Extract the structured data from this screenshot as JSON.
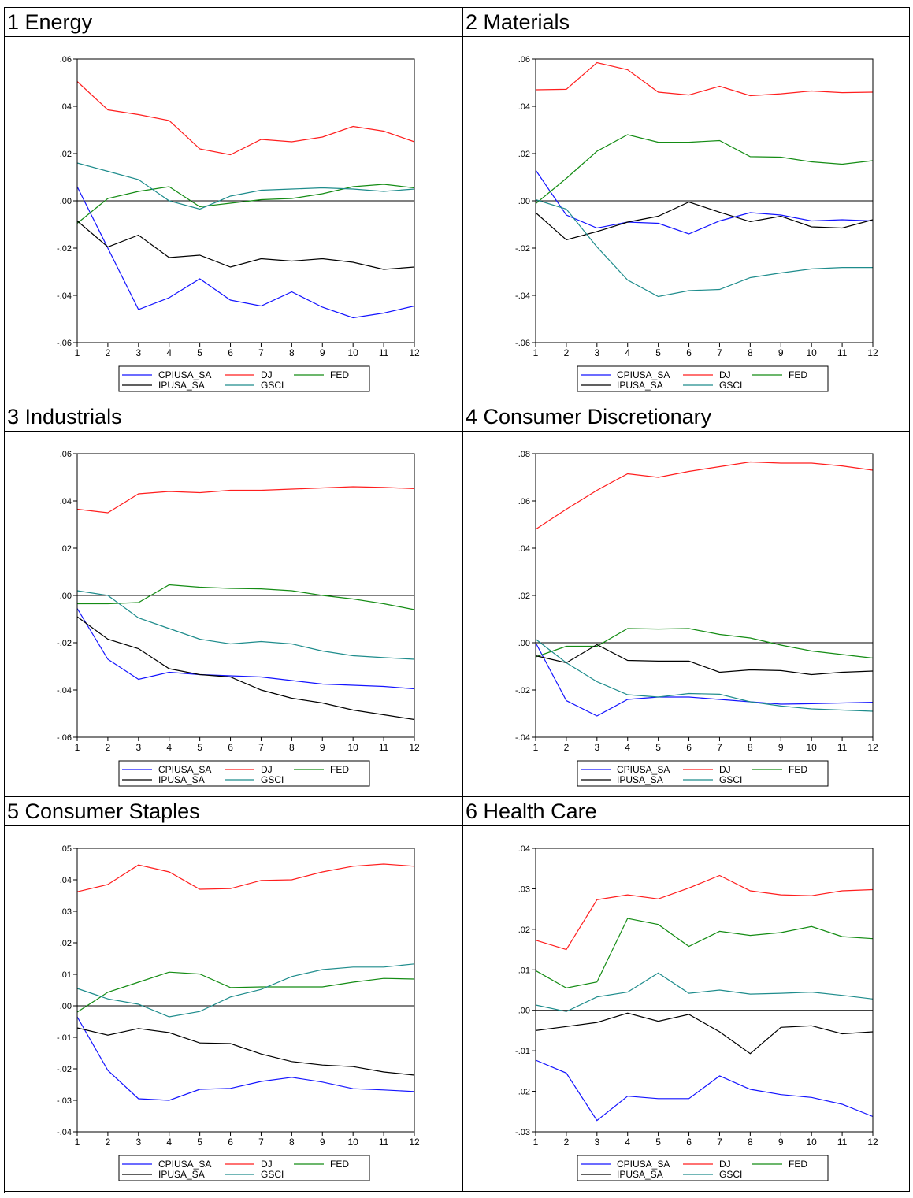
{
  "legend_order": [
    "CPIUSA_SA",
    "DJ",
    "FED",
    "IPUSA_SA",
    "GSCI"
  ],
  "series_colors": {
    "CPIUSA_SA": "#1414ff",
    "DJ": "#ff1e1e",
    "FED": "#148c14",
    "IPUSA_SA": "#000000",
    "GSCI": "#1e8c8c"
  },
  "panels": [
    {
      "title": "1 Energy"
    },
    {
      "title": "2 Materials"
    },
    {
      "title": "3 Industrials"
    },
    {
      "title": "4 Consumer Discretionary"
    },
    {
      "title": "5 Consumer Staples"
    },
    {
      "title": "6 Health Care"
    }
  ],
  "chart_data": [
    {
      "type": "line",
      "title": "1 Energy",
      "x": [
        1,
        2,
        3,
        4,
        5,
        6,
        7,
        8,
        9,
        10,
        11,
        12
      ],
      "ylim": [
        -0.06,
        0.06
      ],
      "yticks": [
        ".06",
        ".04",
        ".02",
        ".00",
        "-.02",
        "-.04",
        "-.06"
      ],
      "series": [
        {
          "name": "CPIUSA_SA",
          "values": [
            0.006,
            -0.02,
            -0.046,
            -0.041,
            -0.033,
            -0.042,
            -0.0445,
            -0.0385,
            -0.045,
            -0.0495,
            -0.0475,
            -0.0445
          ]
        },
        {
          "name": "DJ",
          "values": [
            0.0505,
            0.0385,
            0.0365,
            0.034,
            0.022,
            0.0195,
            0.026,
            0.025,
            0.027,
            0.0315,
            0.0295,
            0.025
          ]
        },
        {
          "name": "FED",
          "values": [
            -0.0095,
            0.001,
            0.004,
            0.006,
            -0.0025,
            -0.001,
            0.0005,
            0.001,
            0.003,
            0.006,
            0.007,
            0.0055
          ]
        },
        {
          "name": "IPUSA_SA",
          "values": [
            -0.0085,
            -0.0195,
            -0.0145,
            -0.024,
            -0.023,
            -0.028,
            -0.0245,
            -0.0255,
            -0.0245,
            -0.026,
            -0.029,
            -0.028
          ]
        },
        {
          "name": "GSCI",
          "values": [
            0.016,
            0.0125,
            0.009,
            0.0,
            -0.0035,
            0.002,
            0.0045,
            0.005,
            0.0055,
            0.005,
            0.004,
            0.005
          ]
        }
      ]
    },
    {
      "type": "line",
      "title": "2 Materials",
      "x": [
        1,
        2,
        3,
        4,
        5,
        6,
        7,
        8,
        9,
        10,
        11,
        12
      ],
      "ylim": [
        -0.06,
        0.06
      ],
      "yticks": [
        ".06",
        ".04",
        ".02",
        ".00",
        "-.02",
        "-.04",
        "-.06"
      ],
      "series": [
        {
          "name": "CPIUSA_SA",
          "values": [
            0.013,
            -0.006,
            -0.0115,
            -0.009,
            -0.0095,
            -0.014,
            -0.0085,
            -0.005,
            -0.006,
            -0.0085,
            -0.008,
            -0.0085
          ]
        },
        {
          "name": "DJ",
          "values": [
            0.047,
            0.0472,
            0.0585,
            0.0555,
            0.046,
            0.0448,
            0.0485,
            0.0445,
            0.0453,
            0.0465,
            0.0458,
            0.046
          ]
        },
        {
          "name": "FED",
          "values": [
            -0.0012,
            0.0095,
            0.021,
            0.028,
            0.0248,
            0.0248,
            0.0255,
            0.0187,
            0.0185,
            0.0165,
            0.0155,
            0.017
          ]
        },
        {
          "name": "IPUSA_SA",
          "values": [
            -0.005,
            -0.0165,
            -0.013,
            -0.009,
            -0.0065,
            -0.0005,
            -0.0048,
            -0.0088,
            -0.0065,
            -0.011,
            -0.0115,
            -0.008
          ]
        },
        {
          "name": "GSCI",
          "values": [
            0.0005,
            -0.0035,
            -0.0195,
            -0.0335,
            -0.0405,
            -0.038,
            -0.0375,
            -0.0325,
            -0.0305,
            -0.0288,
            -0.0282,
            -0.0282
          ]
        }
      ]
    },
    {
      "type": "line",
      "title": "3 Industrials",
      "x": [
        1,
        2,
        3,
        4,
        5,
        6,
        7,
        8,
        9,
        10,
        11,
        12
      ],
      "ylim": [
        -0.06,
        0.06
      ],
      "yticks": [
        ".06",
        ".04",
        ".02",
        ".00",
        "-.02",
        "-.04",
        "-.06"
      ],
      "series": [
        {
          "name": "CPIUSA_SA",
          "values": [
            -0.0055,
            -0.027,
            -0.0355,
            -0.0325,
            -0.0335,
            -0.034,
            -0.0345,
            -0.036,
            -0.0375,
            -0.038,
            -0.0385,
            -0.0395
          ]
        },
        {
          "name": "DJ",
          "values": [
            0.0365,
            0.035,
            0.043,
            0.044,
            0.0435,
            0.0445,
            0.0445,
            0.045,
            0.0455,
            0.046,
            0.0457,
            0.0452
          ]
        },
        {
          "name": "FED",
          "values": [
            -0.0035,
            -0.0035,
            -0.003,
            0.0045,
            0.0035,
            0.003,
            0.0028,
            0.002,
            0.0,
            -0.0015,
            -0.0035,
            -0.006
          ]
        },
        {
          "name": "IPUSA_SA",
          "values": [
            -0.009,
            -0.0185,
            -0.0225,
            -0.031,
            -0.0335,
            -0.0345,
            -0.04,
            -0.0435,
            -0.0455,
            -0.0485,
            -0.0505,
            -0.0525
          ]
        },
        {
          "name": "GSCI",
          "values": [
            0.002,
            0.0,
            -0.0095,
            -0.014,
            -0.0185,
            -0.0205,
            -0.0195,
            -0.0205,
            -0.0235,
            -0.0255,
            -0.0263,
            -0.027
          ]
        }
      ]
    },
    {
      "type": "line",
      "title": "4 Consumer Discretionary",
      "x": [
        1,
        2,
        3,
        4,
        5,
        6,
        7,
        8,
        9,
        10,
        11,
        12
      ],
      "ylim": [
        -0.04,
        0.08
      ],
      "yticks": [
        ".08",
        ".06",
        ".04",
        ".02",
        ".00",
        "-.02",
        "-.04"
      ],
      "series": [
        {
          "name": "CPIUSA_SA",
          "values": [
            0.0,
            -0.0245,
            -0.031,
            -0.024,
            -0.023,
            -0.023,
            -0.024,
            -0.025,
            -0.026,
            -0.0258,
            -0.0255,
            -0.0252
          ]
        },
        {
          "name": "DJ",
          "values": [
            0.048,
            0.0565,
            0.0645,
            0.0715,
            0.07,
            0.0725,
            0.0745,
            0.0765,
            0.076,
            0.076,
            0.0748,
            0.073
          ]
        },
        {
          "name": "FED",
          "values": [
            -0.006,
            -0.0015,
            -0.0015,
            0.006,
            0.0058,
            0.006,
            0.0035,
            0.002,
            -0.001,
            -0.0035,
            -0.005,
            -0.0065
          ]
        },
        {
          "name": "IPUSA_SA",
          "values": [
            -0.0055,
            -0.0085,
            -0.0008,
            -0.0075,
            -0.0078,
            -0.0078,
            -0.0125,
            -0.0115,
            -0.0118,
            -0.0135,
            -0.0125,
            -0.012
          ]
        },
        {
          "name": "GSCI",
          "values": [
            0.0015,
            -0.0085,
            -0.0165,
            -0.022,
            -0.023,
            -0.0215,
            -0.0218,
            -0.025,
            -0.0268,
            -0.028,
            -0.0285,
            -0.029
          ]
        }
      ]
    },
    {
      "type": "line",
      "title": "5 Consumer Staples",
      "x": [
        1,
        2,
        3,
        4,
        5,
        6,
        7,
        8,
        9,
        10,
        11,
        12
      ],
      "ylim": [
        -0.04,
        0.05
      ],
      "yticks": [
        ".05",
        ".04",
        ".03",
        ".02",
        ".01",
        ".00",
        "-.01",
        "-.02",
        "-.03",
        "-.04"
      ],
      "series": [
        {
          "name": "CPIUSA_SA",
          "values": [
            -0.0035,
            -0.0205,
            -0.0295,
            -0.03,
            -0.0265,
            -0.0262,
            -0.024,
            -0.0227,
            -0.0242,
            -0.0263,
            -0.0267,
            -0.0272
          ]
        },
        {
          "name": "DJ",
          "values": [
            0.0362,
            0.0385,
            0.0447,
            0.0425,
            0.037,
            0.0372,
            0.0398,
            0.04,
            0.0425,
            0.0443,
            0.045,
            0.0443
          ]
        },
        {
          "name": "FED",
          "values": [
            -0.002,
            0.0043,
            0.0075,
            0.0107,
            0.0101,
            0.0058,
            0.006,
            0.006,
            0.006,
            0.0075,
            0.0087,
            0.0085
          ]
        },
        {
          "name": "IPUSA_SA",
          "values": [
            -0.007,
            -0.0093,
            -0.0072,
            -0.0085,
            -0.0118,
            -0.012,
            -0.0153,
            -0.0177,
            -0.0188,
            -0.0193,
            -0.021,
            -0.022
          ]
        },
        {
          "name": "GSCI",
          "values": [
            0.0055,
            0.0022,
            0.0005,
            -0.0035,
            -0.0018,
            0.0028,
            0.0052,
            0.0093,
            0.0115,
            0.0123,
            0.0123,
            0.0133
          ]
        }
      ]
    },
    {
      "type": "line",
      "title": "6 Health Care",
      "x": [
        1,
        2,
        3,
        4,
        5,
        6,
        7,
        8,
        9,
        10,
        11,
        12
      ],
      "ylim": [
        -0.03,
        0.04
      ],
      "yticks": [
        ".04",
        ".03",
        ".02",
        ".01",
        ".00",
        "-.01",
        "-.02",
        "-.03"
      ],
      "series": [
        {
          "name": "CPIUSA_SA",
          "values": [
            -0.0123,
            -0.0155,
            -0.0272,
            -0.0212,
            -0.0218,
            -0.0218,
            -0.0162,
            -0.0195,
            -0.0208,
            -0.0215,
            -0.0232,
            -0.0262
          ]
        },
        {
          "name": "DJ",
          "values": [
            0.0173,
            0.015,
            0.0273,
            0.0285,
            0.0275,
            0.0302,
            0.0333,
            0.0295,
            0.0285,
            0.0283,
            0.0295,
            0.0298
          ]
        },
        {
          "name": "FED",
          "values": [
            0.0098,
            0.0055,
            0.007,
            0.0227,
            0.0212,
            0.0158,
            0.0195,
            0.0185,
            0.0192,
            0.0207,
            0.0182,
            0.0177
          ]
        },
        {
          "name": "IPUSA_SA",
          "values": [
            -0.005,
            -0.004,
            -0.003,
            -0.0007,
            -0.0027,
            -0.001,
            -0.0053,
            -0.0107,
            -0.0042,
            -0.0038,
            -0.0058,
            -0.0053
          ]
        },
        {
          "name": "GSCI",
          "values": [
            0.0013,
            -0.0003,
            0.0033,
            0.0045,
            0.0092,
            0.0042,
            0.005,
            0.004,
            0.0042,
            0.0045,
            0.0037,
            0.0028
          ]
        }
      ]
    }
  ]
}
